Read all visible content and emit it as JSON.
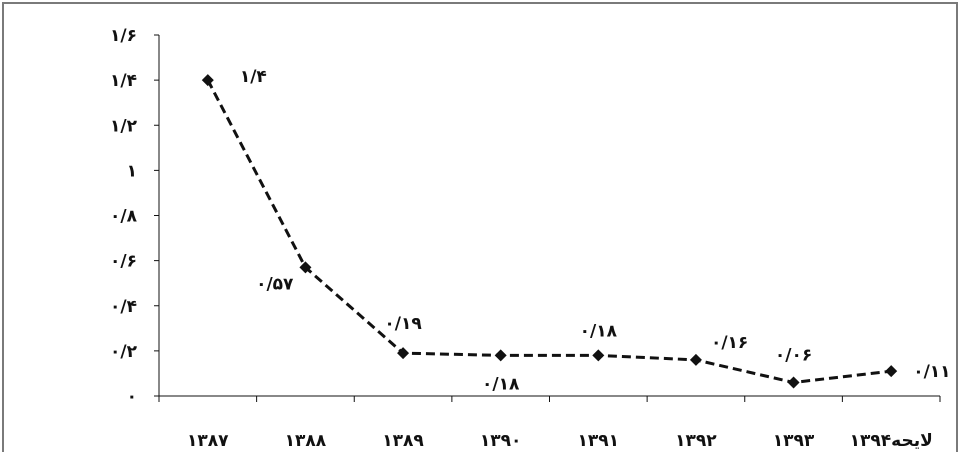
{
  "colors": {
    "line": "#111111",
    "axis": "#111111",
    "frame": "#7a7a7a",
    "background": "#ffffff"
  },
  "chart_data": {
    "type": "line",
    "title": "",
    "xlabel": "",
    "ylabel": "",
    "grid": false,
    "legend": "none",
    "categories": [
      "۱۳۸۷",
      "۱۳۸۸",
      "۱۳۸۹",
      "۱۳۹۰",
      "۱۳۹۱",
      "۱۳۹۲",
      "۱۳۹۳",
      "۱۳۹۴لایحه"
    ],
    "y_ticks": [
      0,
      0.2,
      0.4,
      0.6,
      0.8,
      1,
      1.2,
      1.4,
      1.6
    ],
    "y_tick_labels": [
      "۰",
      "۰/۲",
      "۰/۴",
      "۰/۶",
      "۰/۸",
      "۱",
      "۱/۲",
      "۱/۴",
      "۱/۶"
    ],
    "ylim": [
      0,
      1.6
    ],
    "series": [
      {
        "values": [
          1.4,
          0.57,
          0.19,
          0.18,
          0.18,
          0.16,
          0.06,
          0.11
        ],
        "labels": [
          "۱/۴",
          "۰/۵۷",
          "۰/۱۹",
          "۰/۱۸",
          "۰/۱۸",
          "۰/۱۶",
          "۰/۰۶",
          "۰/۱۱"
        ],
        "line_style": "dashed",
        "marker": "diamond"
      }
    ]
  }
}
